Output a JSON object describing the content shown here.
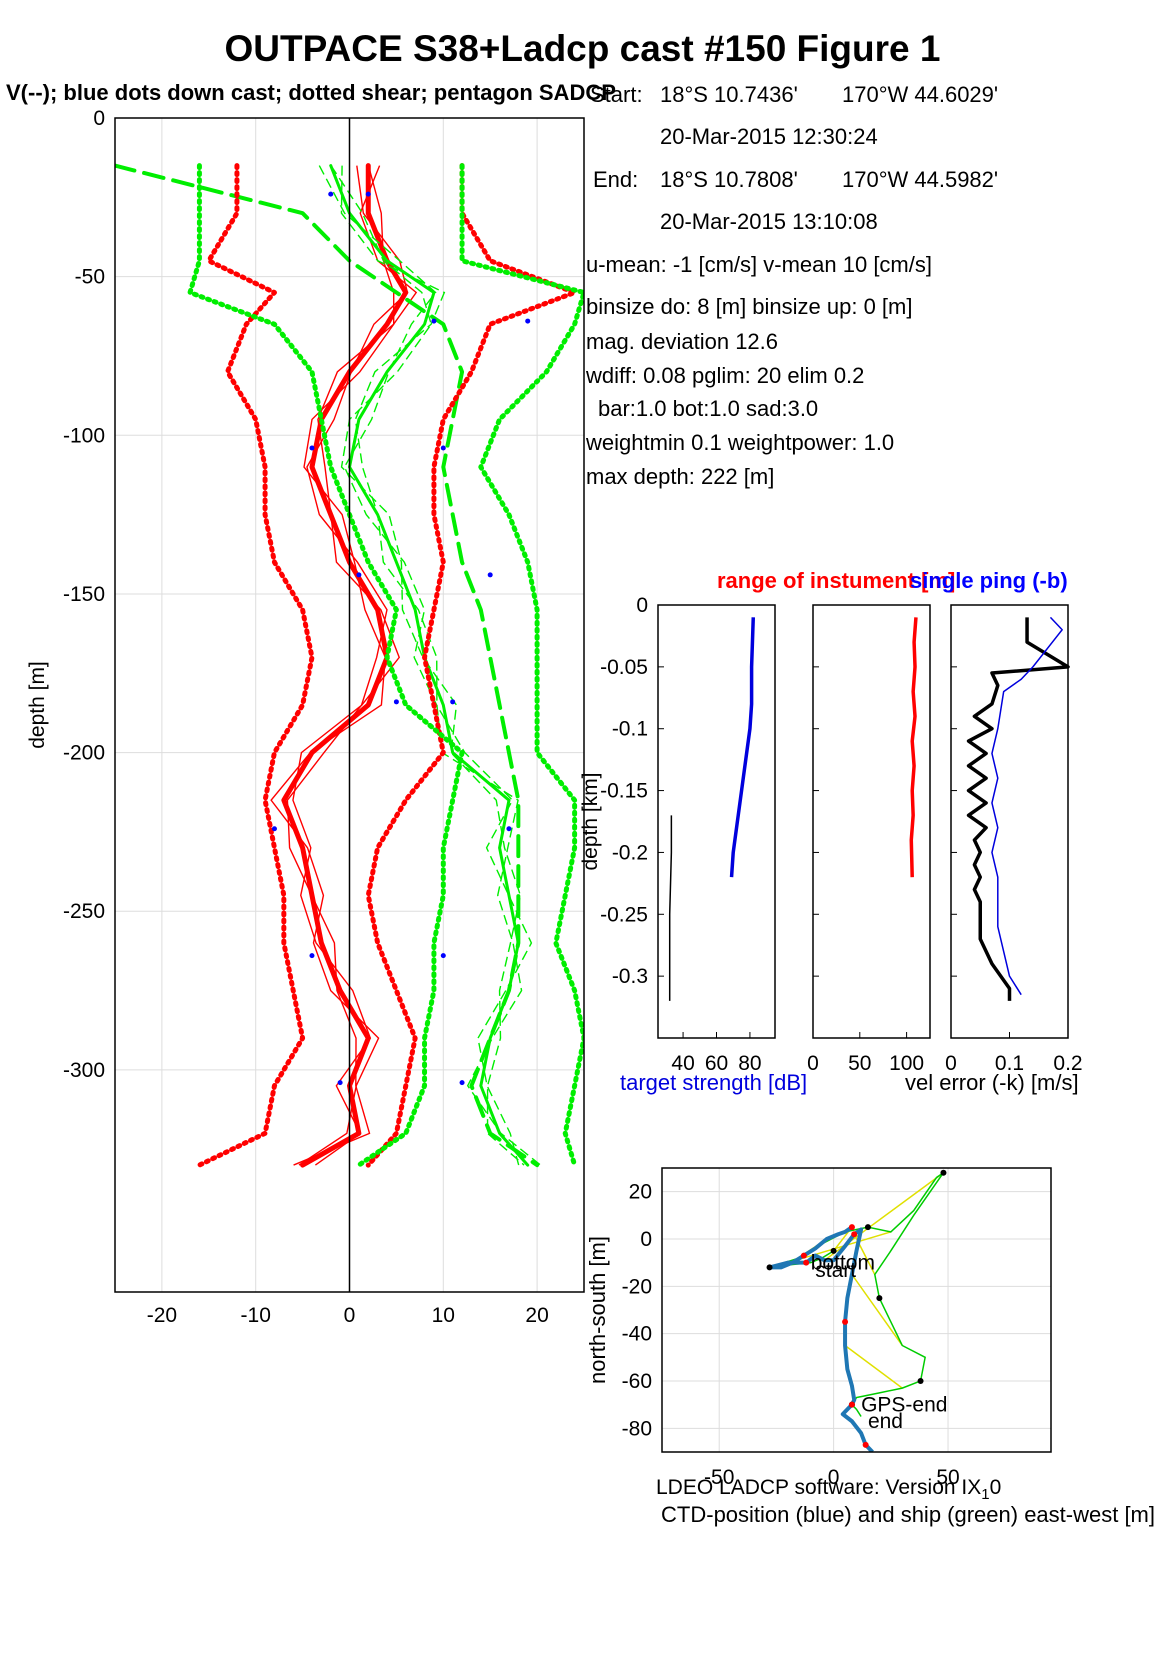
{
  "title": "OUTPACE S38+Ladcp cast #150  Figure 1",
  "subtitle": "V(--); blue dots down cast; dotted shear; pentagon SADCP",
  "info": {
    "start_label": "Start:",
    "start_lat": "18°S 10.7436'",
    "start_lon": "170°W 44.6029'",
    "start_time": "20-Mar-2015 12:30:24",
    "end_label": "End:",
    "end_lat": "18°S 10.7808'",
    "end_lon": "170°W 44.5982'",
    "end_time": "20-Mar-2015 13:10:08",
    "umean": "u-mean:  -1 [cm/s]    v-mean  10 [cm/s]",
    "binsize": "binsize do: 8 [m]  binsize up:  0 [m]",
    "magdev": "mag. deviation 12.6",
    "wdiff": "wdiff: 0.08  pglim: 20  elim 0.2",
    "bar": "bar:1.0 bot:1.0 sad:3.0",
    "weight": "weightmin 0.1  weightpower: 1.0",
    "maxdepth": "max depth: 222 [m]"
  },
  "footer": "LDEO LADCP software: Version IX",
  "footer_sub": "1",
  "footer_end": "0",
  "colors": {
    "u": "#ff0000",
    "v": "#00ee00",
    "dots": "#0000ff",
    "ctd": "#1f77b4",
    "ship": "#00cc00",
    "link": "#e0e000"
  },
  "chart_data": [
    {
      "type": "line",
      "ylabel": "depth [m]",
      "xlim": [
        -25,
        25
      ],
      "ylim": [
        -370,
        0
      ],
      "xticks": [
        -20,
        -10,
        0,
        10,
        20
      ],
      "yticks": [
        0,
        -50,
        -100,
        -150,
        -200,
        -250,
        -300
      ],
      "xticklabels": [
        "-20",
        "-10",
        "0",
        "10",
        "20"
      ],
      "yticklabels": [
        "0",
        "-50",
        "-100",
        "-150",
        "-200",
        "-250",
        "-300"
      ],
      "grid": true,
      "depth": [
        -15,
        -30,
        -45,
        -55,
        -65,
        -80,
        -95,
        -110,
        -125,
        -140,
        -155,
        -170,
        -185,
        -200,
        -215,
        -230,
        -245,
        -260,
        -275,
        -290,
        -305,
        -320,
        -330
      ],
      "series": [
        {
          "values": [
            2,
            2,
            4,
            6,
            4,
            0,
            -3,
            -4,
            -2,
            0,
            3,
            4,
            2,
            -4,
            -7,
            -5,
            -4,
            -3,
            -1,
            2,
            0,
            1,
            -5
          ]
        },
        {
          "values": [
            -2,
            0,
            4,
            9,
            8,
            4,
            1,
            0,
            3,
            5,
            7,
            8,
            10,
            11,
            17,
            16,
            17,
            18,
            17,
            15,
            14,
            16,
            19
          ]
        },
        {
          "dash": "long",
          "values": [
            -25,
            -5,
            0,
            5,
            10,
            12,
            11,
            10,
            11,
            12,
            14,
            15,
            16,
            17,
            18,
            18,
            18,
            18,
            17,
            15,
            13,
            15,
            20
          ]
        },
        {
          "dots": "red",
          "values": [
            -12,
            -12,
            -15,
            -8,
            -11,
            -13,
            -10,
            -9,
            -9,
            -8,
            -5,
            -4,
            -5,
            -8,
            -9,
            -8,
            -7,
            -7,
            -6,
            -5,
            -8,
            -9,
            -16
          ]
        },
        {
          "dots": "red",
          "values": [
            12,
            12,
            15,
            24,
            15,
            13,
            10,
            9,
            9,
            10,
            9,
            8,
            9,
            10,
            6,
            3,
            2,
            3,
            5,
            7,
            6,
            5,
            2
          ]
        },
        {
          "dots": "green",
          "values": [
            -16,
            -16,
            -16,
            -17,
            -8,
            -4,
            -3,
            -2,
            0,
            2,
            5,
            4,
            6,
            12,
            11,
            10,
            10,
            9,
            9,
            8,
            8,
            6,
            1
          ]
        },
        {
          "dots": "green",
          "values": [
            12,
            12,
            12,
            25,
            24,
            21,
            16,
            14,
            17,
            19,
            20,
            20,
            20,
            20,
            24,
            24,
            23,
            22,
            24,
            25,
            24,
            23,
            24
          ]
        }
      ],
      "blue_dots": [
        [
          -2,
          -24
        ],
        [
          2,
          -24
        ],
        [
          9,
          -64
        ],
        [
          19,
          -64
        ],
        [
          -4,
          -104
        ],
        [
          10,
          -104
        ],
        [
          1,
          -144
        ],
        [
          15,
          -144
        ],
        [
          5,
          -184
        ],
        [
          11,
          -184
        ],
        [
          -8,
          -224
        ],
        [
          17,
          -224
        ],
        [
          -4,
          -264
        ],
        [
          10,
          -264
        ],
        [
          -1,
          -304
        ],
        [
          12,
          -304
        ]
      ]
    },
    {
      "type": "line",
      "title_left": "range of instument [m]",
      "title_right": "single ping (-b)",
      "ylabel": "depth [km]",
      "ylim": [
        -0.35,
        0
      ],
      "yticks": [
        0,
        -0.05,
        -0.1,
        -0.15,
        -0.2,
        -0.25,
        -0.3
      ],
      "yticklabels": [
        "0",
        "-0.05",
        "-0.1",
        "-0.15",
        "-0.2",
        "-0.25",
        "-0.3"
      ],
      "panels": [
        {
          "xlabel": "target strength [dB]",
          "xlim": [
            25,
            95
          ],
          "xticks": [
            40,
            60,
            80
          ],
          "xticklabels": [
            "40",
            "60",
            "80"
          ],
          "series": [
            {
              "color": "blue",
              "x": [
                82,
                81,
                81,
                80,
                78,
                76,
                74,
                72,
                70,
                69
              ],
              "y": [
                -0.01,
                -0.05,
                -0.08,
                -0.1,
                -0.12,
                -0.14,
                -0.16,
                -0.18,
                -0.2,
                -0.22
              ]
            },
            {
              "color": "black",
              "x": [
                33,
                33,
                32,
                32
              ],
              "y": [
                -0.17,
                -0.2,
                -0.25,
                -0.32
              ]
            }
          ]
        },
        {
          "xlabel": "",
          "xlim": [
            0,
            125
          ],
          "xticks": [
            0,
            50,
            100
          ],
          "xticklabels": [
            "0",
            "50",
            "100"
          ],
          "series": [
            {
              "color": "red",
              "x": [
                110,
                108,
                109,
                107,
                109,
                106,
                108,
                106,
                107,
                105,
                106
              ],
              "y": [
                -0.01,
                -0.03,
                -0.05,
                -0.07,
                -0.09,
                -0.11,
                -0.13,
                -0.15,
                -0.17,
                -0.19,
                -0.22
              ]
            }
          ]
        },
        {
          "xlabel": "vel error (-k) [m/s]",
          "xlim": [
            0,
            0.2
          ],
          "xticks": [
            0,
            0.1,
            0.2
          ],
          "xticklabels": [
            "0",
            "0.1",
            "0.2"
          ],
          "series": [
            {
              "color": "black",
              "x": [
                0.13,
                0.13,
                0.2,
                0.07,
                0.08,
                0.07,
                0.04,
                0.07,
                0.03,
                0.06,
                0.03,
                0.06,
                0.03,
                0.06,
                0.03,
                0.06,
                0.04,
                0.05,
                0.04,
                0.05,
                0.04,
                0.05,
                0.05,
                0.07,
                0.1,
                0.1
              ],
              "y": [
                -0.01,
                -0.03,
                -0.05,
                -0.055,
                -0.065,
                -0.08,
                -0.09,
                -0.1,
                -0.11,
                -0.12,
                -0.13,
                -0.14,
                -0.15,
                -0.16,
                -0.17,
                -0.18,
                -0.19,
                -0.2,
                -0.21,
                -0.22,
                -0.23,
                -0.24,
                -0.27,
                -0.29,
                -0.31,
                -0.32
              ]
            },
            {
              "color": "blue",
              "x": [
                0.17,
                0.19,
                0.14,
                0.12,
                0.09,
                0.08,
                0.07,
                0.08,
                0.07,
                0.08,
                0.07,
                0.08,
                0.08,
                0.08,
                0.09,
                0.1,
                0.12
              ],
              "y": [
                -0.01,
                -0.02,
                -0.05,
                -0.06,
                -0.07,
                -0.1,
                -0.12,
                -0.14,
                -0.16,
                -0.18,
                -0.2,
                -0.22,
                -0.24,
                -0.26,
                -0.28,
                -0.3,
                -0.315
              ]
            }
          ]
        }
      ]
    },
    {
      "type": "line",
      "xlabel": "CTD-position (blue) and ship (green) east-west [m]",
      "ylabel": "north-south [m]",
      "xlim": [
        -75,
        95
      ],
      "ylim": [
        -90,
        30
      ],
      "xticks": [
        -50,
        0,
        50
      ],
      "yticks": [
        20,
        0,
        -20,
        -40,
        -60,
        -80
      ],
      "xticklabels": [
        "-50",
        "0",
        "50"
      ],
      "yticklabels": [
        "20",
        "0",
        "-20",
        "-40",
        "-60",
        "-80"
      ],
      "grid": true,
      "ctd": {
        "x": [
          8,
          5,
          2,
          -3,
          -8,
          -13,
          -18,
          -23,
          -28,
          -20,
          -12,
          -8,
          -4,
          0,
          5,
          9,
          12,
          10,
          8,
          6,
          5,
          5,
          6,
          8,
          9,
          8,
          6,
          4,
          8,
          12,
          14,
          17
        ],
        "y": [
          5,
          3,
          2,
          0,
          -4,
          -7,
          -10,
          -12,
          -12,
          -10,
          -10,
          -7,
          -9,
          -9,
          -3,
          2,
          4,
          -5,
          -15,
          -25,
          -35,
          -45,
          -55,
          -62,
          -68,
          -70,
          -72,
          -74,
          -77,
          -82,
          -87,
          -90
        ]
      },
      "ship": {
        "x": [
          0,
          -5,
          -10,
          -20,
          -28,
          -15,
          -5,
          5,
          15,
          25,
          35,
          45,
          48,
          35,
          25,
          18,
          20,
          25,
          30,
          40,
          38,
          30,
          20,
          10,
          8,
          10,
          12
        ],
        "y": [
          -5,
          -8,
          -10,
          -11,
          -12,
          -8,
          -2,
          3,
          5,
          3,
          12,
          26,
          28,
          10,
          -5,
          -15,
          -25,
          -35,
          -45,
          -50,
          -60,
          -63,
          -65,
          -67,
          -70,
          -72,
          -75
        ]
      },
      "labels": [
        {
          "text": "bottom",
          "x": -10,
          "y": -10
        },
        {
          "text": "start",
          "x": -8,
          "y": -13
        },
        {
          "text": "GPS-end",
          "x": 12,
          "y": -70
        },
        {
          "text": "end",
          "x": 15,
          "y": -77
        }
      ]
    }
  ]
}
